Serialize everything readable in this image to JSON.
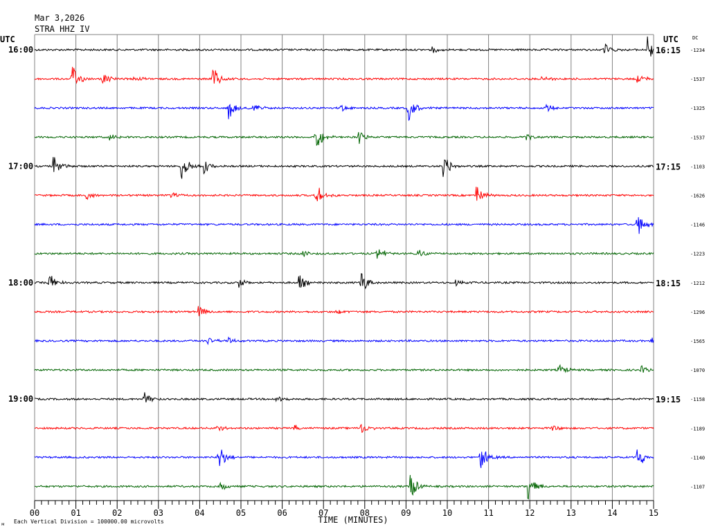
{
  "header": {
    "date": "Mar 3,2026",
    "station": "STRA HHZ IV",
    "utc_left": "UTC",
    "utc_right": "UTC",
    "dc_label": "DC"
  },
  "footer": {
    "scale_note": "Each Vertical Division = 100000.00 microvolts",
    "corner_mark": "м"
  },
  "chart_data": {
    "type": "line",
    "title": "",
    "xlabel": "TIME (MINUTES)",
    "ylabel": "",
    "xlim": [
      0,
      15
    ],
    "x_ticks": [
      "00",
      "01",
      "02",
      "03",
      "04",
      "05",
      "06",
      "07",
      "08",
      "09",
      "10",
      "11",
      "12",
      "13",
      "14",
      "15"
    ],
    "grid": true,
    "trace_colors": [
      "#000000",
      "#ff0000",
      "#0000ff",
      "#006400"
    ],
    "left_time_labels": [
      {
        "row": 0,
        "label": "16:00"
      },
      {
        "row": 4,
        "label": "17:00"
      },
      {
        "row": 8,
        "label": "18:00"
      },
      {
        "row": 12,
        "label": "19:00"
      }
    ],
    "right_time_labels": [
      {
        "row": 0,
        "label": "16:15"
      },
      {
        "row": 4,
        "label": "17:15"
      },
      {
        "row": 8,
        "label": "18:15"
      },
      {
        "row": 12,
        "label": "19:15"
      }
    ],
    "traces": [
      {
        "dc": "-1234",
        "events": [
          [
            9.6,
            0.3
          ],
          [
            13.8,
            0.5
          ],
          [
            14.85,
            1.0
          ]
        ]
      },
      {
        "dc": "-1537",
        "events": [
          [
            0.9,
            1.0
          ],
          [
            1.65,
            0.35
          ],
          [
            2.4,
            0.25
          ],
          [
            4.3,
            1.0
          ],
          [
            12.3,
            0.3
          ],
          [
            14.6,
            0.4
          ]
        ]
      },
      {
        "dc": "-1325",
        "events": [
          [
            4.7,
            0.8
          ],
          [
            5.3,
            0.45
          ],
          [
            7.4,
            0.3
          ],
          [
            9.05,
            1.0
          ],
          [
            12.4,
            0.3
          ]
        ]
      },
      {
        "dc": "-1537",
        "events": [
          [
            1.8,
            0.3
          ],
          [
            6.8,
            1.0
          ],
          [
            7.85,
            0.5
          ],
          [
            11.9,
            0.25
          ]
        ]
      },
      {
        "dc": "-1103",
        "events": [
          [
            0.45,
            0.7
          ],
          [
            3.55,
            1.0
          ],
          [
            4.1,
            0.5
          ],
          [
            9.9,
            1.0
          ]
        ]
      },
      {
        "dc": "-1626",
        "events": [
          [
            1.25,
            0.3
          ],
          [
            3.3,
            0.3
          ],
          [
            6.8,
            0.9
          ],
          [
            10.7,
            0.8
          ]
        ]
      },
      {
        "dc": "-1146",
        "events": [
          [
            14.6,
            1.0
          ]
        ]
      },
      {
        "dc": "-1223",
        "events": [
          [
            6.5,
            0.25
          ],
          [
            8.3,
            0.5
          ],
          [
            9.3,
            0.4
          ]
        ]
      },
      {
        "dc": "-1212",
        "events": [
          [
            0.35,
            0.7
          ],
          [
            4.95,
            0.35
          ],
          [
            6.4,
            0.6
          ],
          [
            7.9,
            1.0
          ],
          [
            10.2,
            0.25
          ]
        ]
      },
      {
        "dc": "-1296",
        "events": [
          [
            3.95,
            0.5
          ],
          [
            7.3,
            0.25
          ]
        ]
      },
      {
        "dc": "-1565",
        "events": [
          [
            4.2,
            0.3
          ],
          [
            4.7,
            0.25
          ],
          [
            14.95,
            0.25
          ]
        ]
      },
      {
        "dc": "-1070",
        "events": [
          [
            12.7,
            0.4
          ],
          [
            14.7,
            0.3
          ]
        ]
      },
      {
        "dc": "-1158",
        "events": [
          [
            2.65,
            0.6
          ],
          [
            5.85,
            0.25
          ]
        ]
      },
      {
        "dc": "-1189",
        "events": [
          [
            4.4,
            0.25
          ],
          [
            6.3,
            0.25
          ],
          [
            7.9,
            0.4
          ],
          [
            12.55,
            0.2
          ]
        ]
      },
      {
        "dc": "-1140",
        "events": [
          [
            4.45,
            1.0
          ],
          [
            10.8,
            1.0
          ],
          [
            14.6,
            0.9
          ]
        ]
      },
      {
        "dc": "-1107",
        "events": [
          [
            4.5,
            0.3
          ],
          [
            9.1,
            1.0
          ],
          [
            11.95,
            1.0
          ]
        ]
      }
    ]
  }
}
